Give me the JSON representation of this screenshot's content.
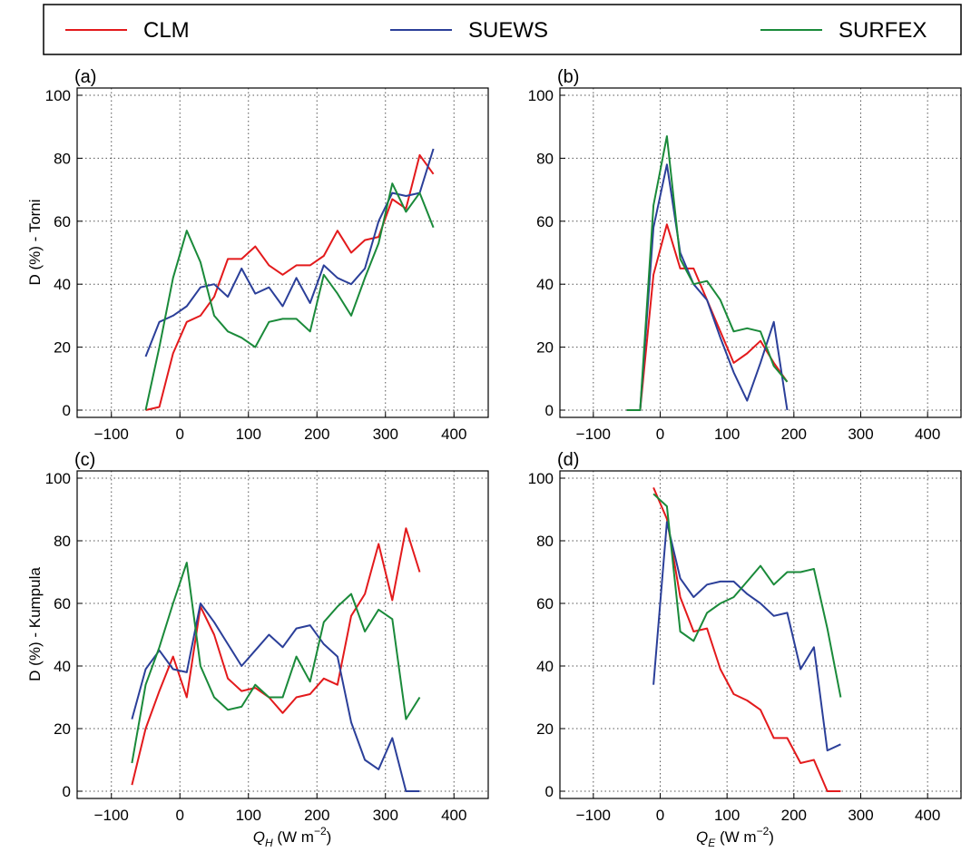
{
  "legend": {
    "entries": [
      {
        "label": "CLM",
        "color": "#e31a1c"
      },
      {
        "label": "SUEWS",
        "color": "#2b3f99"
      },
      {
        "label": "SURFEX",
        "color": "#1a8a3a"
      }
    ]
  },
  "axes_labels": {
    "ylabel_top": "D (%) - Torni",
    "ylabel_bottom": "D (%) - Kumpula",
    "xlabel_left": {
      "sym": "Q",
      "sub": "H",
      "unit": " (W m",
      "sup": "−2",
      "close": ")"
    },
    "xlabel_right": {
      "sym": "Q",
      "sub": "E",
      "unit": " (W m",
      "sup": "−2",
      "close": ")"
    }
  },
  "chart_data": [
    {
      "type": "line",
      "panel": "(a)",
      "xlim": [
        -150,
        450
      ],
      "ylim": [
        0,
        100
      ],
      "xticks": [
        -100,
        0,
        100,
        200,
        300,
        400
      ],
      "yticks": [
        0,
        20,
        40,
        60,
        80,
        100
      ],
      "grid": true,
      "series": [
        {
          "name": "CLM",
          "color": "#e31a1c",
          "x": [
            -50,
            -30,
            -10,
            10,
            30,
            50,
            70,
            90,
            110,
            130,
            150,
            170,
            190,
            210,
            230,
            250,
            270,
            290,
            310,
            330,
            350,
            370
          ],
          "y": [
            0,
            1,
            18,
            28,
            30,
            36,
            48,
            48,
            52,
            46,
            43,
            46,
            46,
            49,
            57,
            50,
            54,
            55,
            67,
            64,
            81,
            75
          ]
        },
        {
          "name": "SUEWS",
          "color": "#2b3f99",
          "x": [
            -50,
            -30,
            -10,
            10,
            30,
            50,
            70,
            90,
            110,
            130,
            150,
            170,
            190,
            210,
            230,
            250,
            270,
            290,
            310,
            330,
            350,
            370
          ],
          "y": [
            17,
            28,
            30,
            33,
            39,
            40,
            36,
            45,
            37,
            39,
            33,
            42,
            34,
            46,
            42,
            40,
            45,
            60,
            69,
            68,
            69,
            83
          ]
        },
        {
          "name": "SURFEX",
          "color": "#1a8a3a",
          "x": [
            -50,
            -30,
            -10,
            10,
            30,
            50,
            70,
            90,
            110,
            130,
            150,
            170,
            190,
            210,
            230,
            250,
            270,
            290,
            310,
            330,
            350,
            370
          ],
          "y": [
            0,
            20,
            42,
            57,
            47,
            30,
            25,
            23,
            20,
            28,
            29,
            29,
            25,
            43,
            37,
            30,
            42,
            53,
            72,
            63,
            69,
            58
          ]
        }
      ]
    },
    {
      "type": "line",
      "panel": "(b)",
      "xlim": [
        -150,
        450
      ],
      "ylim": [
        0,
        100
      ],
      "xticks": [
        -100,
        0,
        100,
        200,
        300,
        400
      ],
      "yticks": [
        0,
        20,
        40,
        60,
        80,
        100
      ],
      "grid": true,
      "series": [
        {
          "name": "CLM",
          "color": "#e31a1c",
          "x": [
            -50,
            -30,
            -10,
            10,
            30,
            50,
            70,
            90,
            110,
            130,
            150,
            170,
            190
          ],
          "y": [
            0,
            0,
            43,
            59,
            45,
            45,
            35,
            25,
            15,
            18,
            22,
            15,
            9
          ]
        },
        {
          "name": "SUEWS",
          "color": "#2b3f99",
          "x": [
            -50,
            -30,
            -10,
            10,
            30,
            50,
            70,
            90,
            110,
            130,
            150,
            170,
            190
          ],
          "y": [
            0,
            0,
            58,
            78,
            50,
            40,
            35,
            23,
            12,
            3,
            15,
            28,
            0
          ]
        },
        {
          "name": "SURFEX",
          "color": "#1a8a3a",
          "x": [
            -50,
            -30,
            -10,
            10,
            30,
            50,
            70,
            90,
            110,
            130,
            150,
            170,
            190
          ],
          "y": [
            0,
            0,
            65,
            87,
            48,
            40,
            41,
            35,
            25,
            26,
            25,
            14,
            9
          ]
        }
      ]
    },
    {
      "type": "line",
      "panel": "(c)",
      "xlim": [
        -150,
        450
      ],
      "ylim": [
        0,
        100
      ],
      "xticks": [
        -100,
        0,
        100,
        200,
        300,
        400
      ],
      "yticks": [
        0,
        20,
        40,
        60,
        80,
        100
      ],
      "grid": true,
      "series": [
        {
          "name": "CLM",
          "color": "#e31a1c",
          "x": [
            -70,
            -50,
            -30,
            -10,
            10,
            30,
            50,
            70,
            90,
            110,
            130,
            150,
            170,
            190,
            210,
            230,
            250,
            270,
            290,
            310,
            330,
            350
          ],
          "y": [
            2,
            20,
            32,
            43,
            30,
            59,
            50,
            36,
            32,
            33,
            30,
            25,
            30,
            31,
            36,
            34,
            56,
            63,
            79,
            61,
            84,
            70
          ]
        },
        {
          "name": "SUEWS",
          "color": "#2b3f99",
          "x": [
            -70,
            -50,
            -30,
            -10,
            10,
            30,
            50,
            70,
            90,
            110,
            130,
            150,
            170,
            190,
            210,
            230,
            250,
            270,
            290,
            310,
            330,
            350
          ],
          "y": [
            23,
            39,
            45,
            39,
            38,
            60,
            54,
            47,
            40,
            45,
            50,
            46,
            52,
            53,
            47,
            43,
            22,
            10,
            7,
            17,
            0,
            0
          ]
        },
        {
          "name": "SURFEX",
          "color": "#1a8a3a",
          "x": [
            -70,
            -50,
            -30,
            -10,
            10,
            30,
            50,
            70,
            90,
            110,
            130,
            150,
            170,
            190,
            210,
            230,
            250,
            270,
            290,
            310,
            330,
            350
          ],
          "y": [
            9,
            34,
            46,
            60,
            73,
            40,
            30,
            26,
            27,
            34,
            30,
            30,
            43,
            35,
            54,
            59,
            63,
            51,
            58,
            55,
            23,
            30
          ]
        }
      ]
    },
    {
      "type": "line",
      "panel": "(d)",
      "xlim": [
        -150,
        450
      ],
      "ylim": [
        0,
        100
      ],
      "xticks": [
        -100,
        0,
        100,
        200,
        300,
        400
      ],
      "yticks": [
        0,
        20,
        40,
        60,
        80,
        100
      ],
      "grid": true,
      "series": [
        {
          "name": "CLM",
          "color": "#e31a1c",
          "x": [
            -10,
            10,
            30,
            50,
            70,
            90,
            110,
            130,
            150,
            170,
            190,
            210,
            230,
            250,
            270
          ],
          "y": [
            97,
            87,
            62,
            51,
            52,
            39,
            31,
            29,
            26,
            17,
            17,
            9,
            10,
            0,
            0
          ]
        },
        {
          "name": "SUEWS",
          "color": "#2b3f99",
          "x": [
            -10,
            10,
            30,
            50,
            70,
            90,
            110,
            130,
            150,
            170,
            190,
            210,
            230,
            250,
            270
          ],
          "y": [
            34,
            86,
            68,
            62,
            66,
            67,
            67,
            63,
            60,
            56,
            57,
            39,
            46,
            13,
            15
          ]
        },
        {
          "name": "SURFEX",
          "color": "#1a8a3a",
          "x": [
            -10,
            10,
            30,
            50,
            70,
            90,
            110,
            130,
            150,
            170,
            190,
            210,
            230,
            250,
            270
          ],
          "y": [
            95,
            91,
            51,
            48,
            57,
            60,
            62,
            67,
            72,
            66,
            70,
            70,
            71,
            52,
            30
          ]
        }
      ]
    }
  ]
}
